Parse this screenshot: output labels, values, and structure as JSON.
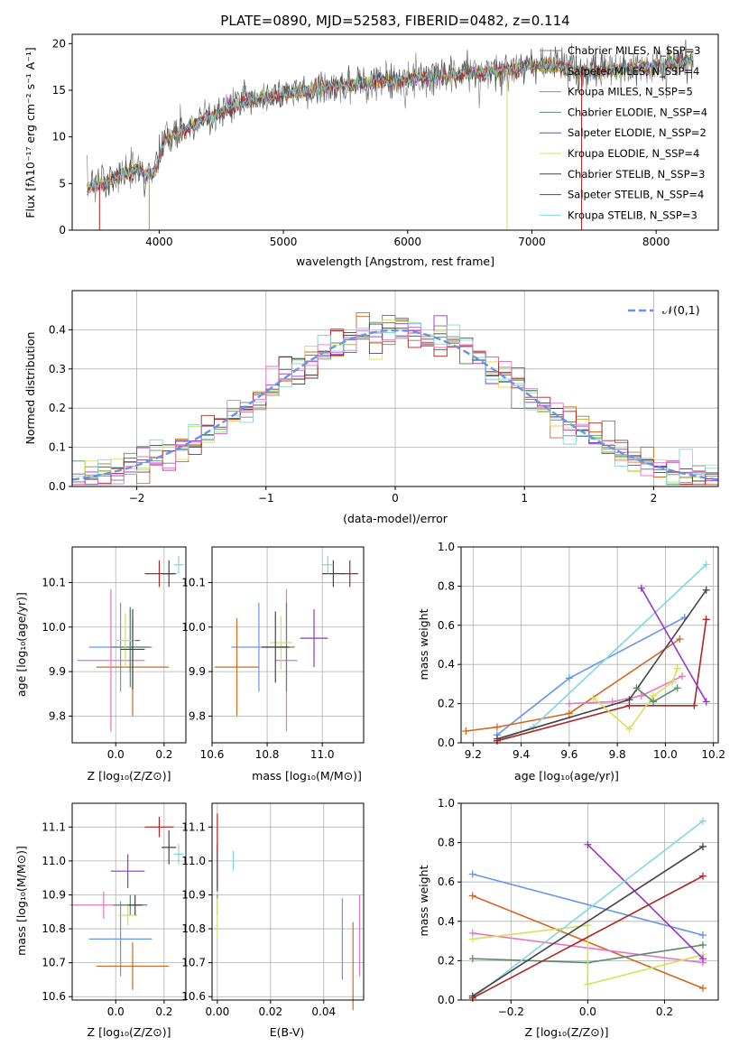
{
  "chart_data": [
    {
      "id": "spectrum",
      "type": "line",
      "title": "PLATE=0890, MJD=52583, FIBERID=0482, z=0.114",
      "xlabel": "wavelength [Angstrom, rest frame]",
      "ylabel": "Flux [fλ10⁻¹⁷ erg cm⁻² s⁻¹ A⁻¹]",
      "xlim": [
        3300,
        8500
      ],
      "ylim": [
        0,
        21
      ],
      "xticks": [
        4000,
        5000,
        6000,
        7000,
        8000
      ],
      "yticks": [
        0,
        5,
        10,
        15,
        20
      ],
      "legend_position": "right",
      "continuum": {
        "x": [
          3400,
          3600,
          3800,
          3950,
          4050,
          4200,
          4400,
          4700,
          5000,
          5300,
          5600,
          5900,
          6200,
          6500,
          6800,
          7100,
          7400,
          7700,
          8000,
          8300
        ],
        "y": [
          4.5,
          5.2,
          6.5,
          6.0,
          9.6,
          10.8,
          12.0,
          13.8,
          14.6,
          15.2,
          15.7,
          16.1,
          16.4,
          16.8,
          17.2,
          17.8,
          17.0,
          17.2,
          17.5,
          18.4
        ]
      },
      "series": [
        {
          "name": "Chabrier MILES, N_SSP=3",
          "color": "#7f7f7f"
        },
        {
          "name": "Salpeter MILES, N_SSP=4",
          "color": "#b0a020"
        },
        {
          "name": "Kroupa MILES, N_SSP=5",
          "color": "#c08040"
        },
        {
          "name": "Chabrier ELODIE, N_SSP=4",
          "color": "#5a8a6a"
        },
        {
          "name": "Salpeter ELODIE, N_SSP=2",
          "color": "#9932cc"
        },
        {
          "name": "Kroupa ELODIE, N_SSP=4",
          "color": "#d4e157"
        },
        {
          "name": "Chabrier STELIB, N_SSP=3",
          "color": "#444444"
        },
        {
          "name": "Salpeter STELIB, N_SSP=4",
          "color": "#b22222"
        },
        {
          "name": "Kroupa STELIB, N_SSP=3",
          "color": "#7fd8dc"
        }
      ]
    },
    {
      "id": "residuals",
      "type": "bar",
      "xlabel": "(data-model)/error",
      "ylabel": "Normed distribution",
      "xlim": [
        -2.5,
        2.5
      ],
      "ylim": [
        0,
        0.5
      ],
      "xticks": [
        -2,
        -1,
        0,
        1,
        2
      ],
      "yticks": [
        0.0,
        0.1,
        0.2,
        0.3,
        0.4
      ],
      "legend_label": "𝒩(0,1)",
      "legend_position": "top-right",
      "gaussian": {
        "mean": 0,
        "sigma": 1,
        "color": "#6495ed"
      },
      "bin_width": 0.1,
      "hist_colors": [
        "#7f7f7f",
        "#d2691e",
        "#5a8a6a",
        "#9932cc",
        "#d4e157",
        "#444444",
        "#b22222",
        "#7fd8dc",
        "#e377c2"
      ]
    },
    {
      "id": "age_vs_Z",
      "type": "scatter",
      "xlabel": "Z [log₁₀(Z/Z⊙)]",
      "ylabel": "age  [log₁₀(age/yr)]",
      "xlim": [
        -0.18,
        0.29
      ],
      "ylim": [
        9.74,
        10.18
      ],
      "xticks": [
        0.0,
        0.2
      ],
      "yticks": [
        9.8,
        9.9,
        10.0,
        10.1
      ],
      "points": [
        {
          "x": 0.02,
          "y": 9.955,
          "xerr": 0.13,
          "yerr": 0.1,
          "color": "#6495ed"
        },
        {
          "x": 0.07,
          "y": 9.91,
          "xerr": 0.15,
          "yerr": 0.11,
          "color": "#d2691e"
        },
        {
          "x": -0.02,
          "y": 9.925,
          "xerr": 0.14,
          "yerr": 0.16,
          "color": "#e377c2"
        },
        {
          "x": 0.06,
          "y": 9.97,
          "xerr": 0.04,
          "yerr": 0.07,
          "color": "#9932cc"
        },
        {
          "x": 0.06,
          "y": 9.955,
          "xerr": 0.08,
          "yerr": 0.09,
          "color": "#5a8a6a"
        },
        {
          "x": 0.04,
          "y": 9.97,
          "xerr": 0.04,
          "yerr": 0.06,
          "color": "#d4e157"
        },
        {
          "x": 0.07,
          "y": 9.95,
          "xerr": 0.05,
          "yerr": 0.09,
          "color": "#444444"
        },
        {
          "x": 0.18,
          "y": 10.12,
          "xerr": 0.06,
          "yerr": 0.03,
          "color": "#b22222"
        },
        {
          "x": 0.22,
          "y": 10.12,
          "xerr": 0.03,
          "yerr": 0.03,
          "color": "#444444"
        },
        {
          "x": 0.26,
          "y": 10.14,
          "xerr": 0.02,
          "yerr": 0.02,
          "color": "#7fd8dc"
        }
      ]
    },
    {
      "id": "age_vs_mass",
      "type": "scatter",
      "xlabel": "mass [log₁₀(M/M⊙)]",
      "ylabel": "",
      "xlim": [
        10.6,
        11.15
      ],
      "ylim": [
        9.74,
        10.18
      ],
      "xticks": [
        10.6,
        10.8,
        11.0
      ],
      "yticks": [
        9.8,
        9.9,
        10.0,
        10.1
      ],
      "points": [
        {
          "x": 10.77,
          "y": 9.955,
          "xerr": 0.1,
          "yerr": 0.1,
          "color": "#6495ed"
        },
        {
          "x": 10.69,
          "y": 9.91,
          "xerr": 0.08,
          "yerr": 0.11,
          "color": "#d2691e"
        },
        {
          "x": 10.87,
          "y": 9.925,
          "xerr": 0.04,
          "yerr": 0.16,
          "color": "#e377c2"
        },
        {
          "x": 10.97,
          "y": 9.975,
          "xerr": 0.05,
          "yerr": 0.065,
          "color": "#9932cc"
        },
        {
          "x": 10.87,
          "y": 9.955,
          "xerr": 0.03,
          "yerr": 0.1,
          "color": "#5a8a6a"
        },
        {
          "x": 10.85,
          "y": 9.965,
          "xerr": 0.04,
          "yerr": 0.06,
          "color": "#d4e157"
        },
        {
          "x": 10.83,
          "y": 9.955,
          "xerr": 0.05,
          "yerr": 0.08,
          "color": "#444444"
        },
        {
          "x": 11.1,
          "y": 10.12,
          "xerr": 0.03,
          "yerr": 0.03,
          "color": "#b22222"
        },
        {
          "x": 11.04,
          "y": 10.12,
          "xerr": 0.04,
          "yerr": 0.03,
          "color": "#444444"
        },
        {
          "x": 11.02,
          "y": 10.14,
          "xerr": 0.02,
          "yerr": 0.02,
          "color": "#7fd8dc"
        }
      ]
    },
    {
      "id": "massweight_vs_age",
      "type": "line",
      "xlabel": "age  [log₁₀(age/yr)]",
      "ylabel": "mass weight",
      "xlim": [
        9.15,
        10.22
      ],
      "ylim": [
        0,
        1
      ],
      "xticks": [
        9.2,
        9.4,
        9.6,
        9.8,
        10.0,
        10.2
      ],
      "yticks": [
        0.0,
        0.2,
        0.4,
        0.6,
        0.8,
        1.0
      ],
      "series": [
        {
          "color": "#6495ed",
          "x": [
            9.3,
            9.6,
            10.08
          ],
          "y": [
            0.04,
            0.33,
            0.64
          ]
        },
        {
          "color": "#d2691e",
          "x": [
            9.17,
            9.3,
            9.6,
            10.06
          ],
          "y": [
            0.06,
            0.08,
            0.15,
            0.53
          ]
        },
        {
          "color": "#e377c2",
          "x": [
            9.6,
            9.78,
            9.9,
            10.07
          ],
          "y": [
            0.2,
            0.21,
            0.24,
            0.34
          ]
        },
        {
          "color": "#7fd8dc",
          "x": [
            9.3,
            9.45,
            10.17
          ],
          "y": [
            0.01,
            0.08,
            0.91
          ]
        },
        {
          "color": "#444444",
          "x": [
            9.3,
            9.85,
            10.17
          ],
          "y": [
            0.02,
            0.22,
            0.78
          ]
        },
        {
          "color": "#b22222",
          "x": [
            9.3,
            9.85,
            10.12,
            10.17
          ],
          "y": [
            0.01,
            0.19,
            0.19,
            0.63
          ]
        },
        {
          "color": "#9932cc",
          "x": [
            9.9,
            10.17
          ],
          "y": [
            0.79,
            0.21
          ]
        },
        {
          "color": "#d4e157",
          "x": [
            9.7,
            9.85,
            9.95,
            10.03,
            10.05
          ],
          "y": [
            0.23,
            0.07,
            0.24,
            0.31,
            0.38
          ]
        },
        {
          "color": "#5a8a6a",
          "x": [
            9.88,
            9.95,
            10.05
          ],
          "y": [
            0.28,
            0.21,
            0.28
          ]
        }
      ]
    },
    {
      "id": "mass_vs_Z",
      "type": "scatter",
      "xlabel": "Z [log₁₀(Z/Z⊙)]",
      "ylabel": "mass [log₁₀(M/M⊙)]",
      "xlim": [
        -0.18,
        0.29
      ],
      "ylim": [
        10.59,
        11.17
      ],
      "xticks": [
        0.0,
        0.2
      ],
      "yticks": [
        10.6,
        10.7,
        10.8,
        10.9,
        11.0,
        11.1
      ],
      "points": [
        {
          "x": 0.02,
          "y": 10.77,
          "xerr": 0.13,
          "yerr": 0.11,
          "color": "#6495ed"
        },
        {
          "x": 0.07,
          "y": 10.69,
          "xerr": 0.15,
          "yerr": 0.07,
          "color": "#d2691e"
        },
        {
          "x": -0.05,
          "y": 10.87,
          "xerr": 0.14,
          "yerr": 0.04,
          "color": "#e377c2"
        },
        {
          "x": 0.05,
          "y": 10.97,
          "xerr": 0.07,
          "yerr": 0.05,
          "color": "#9932cc"
        },
        {
          "x": 0.06,
          "y": 10.87,
          "xerr": 0.07,
          "yerr": 0.03,
          "color": "#5a8a6a"
        },
        {
          "x": 0.05,
          "y": 10.84,
          "xerr": 0.04,
          "yerr": 0.03,
          "color": "#d4e157"
        },
        {
          "x": 0.08,
          "y": 10.87,
          "xerr": 0.03,
          "yerr": 0.03,
          "color": "#444444"
        },
        {
          "x": 0.18,
          "y": 11.1,
          "xerr": 0.06,
          "yerr": 0.03,
          "color": "#b22222"
        },
        {
          "x": 0.22,
          "y": 11.04,
          "xerr": 0.03,
          "yerr": 0.05,
          "color": "#444444"
        },
        {
          "x": 0.26,
          "y": 11.02,
          "xerr": 0.02,
          "yerr": 0.03,
          "color": "#7fd8dc"
        }
      ]
    },
    {
      "id": "mass_vs_ebv",
      "type": "scatter",
      "xlabel": "E(B-V)",
      "ylabel": "",
      "xlim": [
        -0.002,
        0.055
      ],
      "ylim": [
        10.59,
        11.17
      ],
      "xticks": [
        0.0,
        0.02,
        0.04
      ],
      "yticks": [
        10.6,
        10.7,
        10.8,
        10.9,
        11.0,
        11.1
      ],
      "points": [
        {
          "x": 0.047,
          "y": 10.77,
          "xerr": 0,
          "yerr": 0.12,
          "color": "#6495ed"
        },
        {
          "x": 0.051,
          "y": 10.69,
          "xerr": 0,
          "yerr": 0.13,
          "color": "#d2691e"
        },
        {
          "x": 0.0535,
          "y": 10.78,
          "xerr": 0,
          "yerr": 0.12,
          "color": "#e377c2"
        },
        {
          "x": 0.0,
          "y": 10.97,
          "xerr": 0,
          "yerr": 0.05,
          "color": "#9932cc"
        },
        {
          "x": 0.0,
          "y": 10.87,
          "xerr": 0,
          "yerr": 0.03,
          "color": "#5a8a6a"
        },
        {
          "x": 0.0,
          "y": 10.83,
          "xerr": 0,
          "yerr": 0.06,
          "color": "#d4e157"
        },
        {
          "x": 0.0,
          "y": 10.98,
          "xerr": 0,
          "yerr": 0.07,
          "color": "#444444"
        },
        {
          "x": 0.0,
          "y": 11.08,
          "xerr": 0,
          "yerr": 0.06,
          "color": "#b22222"
        },
        {
          "x": 0.006,
          "y": 11.0,
          "xerr": 0,
          "yerr": 0.03,
          "color": "#7fd8dc"
        }
      ]
    },
    {
      "id": "massweight_vs_Z",
      "type": "line",
      "xlabel": "Z [log₁₀(Z/Z⊙)]",
      "ylabel": "mass weight",
      "xlim": [
        -0.33,
        0.34
      ],
      "ylim": [
        0,
        1
      ],
      "xticks": [
        -0.2,
        0.0,
        0.2
      ],
      "yticks": [
        0.0,
        0.2,
        0.4,
        0.6,
        0.8,
        1.0
      ],
      "series": [
        {
          "color": "#6495ed",
          "x": [
            -0.3,
            0.3
          ],
          "y": [
            0.64,
            0.33
          ]
        },
        {
          "color": "#d2691e",
          "x": [
            -0.3,
            0.3
          ],
          "y": [
            0.53,
            0.06
          ]
        },
        {
          "color": "#e377c2",
          "x": [
            -0.3,
            0.3
          ],
          "y": [
            0.34,
            0.19
          ]
        },
        {
          "color": "#5a8a6a",
          "x": [
            -0.3,
            0.0,
            0.3
          ],
          "y": [
            0.21,
            0.19,
            0.28
          ]
        },
        {
          "color": "#d4e157",
          "x": [
            -0.3,
            0.0,
            0.0,
            0.3
          ],
          "y": [
            0.31,
            0.38,
            0.08,
            0.23
          ]
        },
        {
          "color": "#9932cc",
          "x": [
            0.0,
            0.3
          ],
          "y": [
            0.79,
            0.21
          ]
        },
        {
          "color": "#7fd8dc",
          "x": [
            -0.3,
            0.3
          ],
          "y": [
            0.01,
            0.91
          ]
        },
        {
          "color": "#444444",
          "x": [
            -0.3,
            0.3
          ],
          "y": [
            0.02,
            0.78
          ]
        },
        {
          "color": "#b22222",
          "x": [
            -0.3,
            0.3
          ],
          "y": [
            0.01,
            0.63
          ]
        }
      ]
    }
  ]
}
